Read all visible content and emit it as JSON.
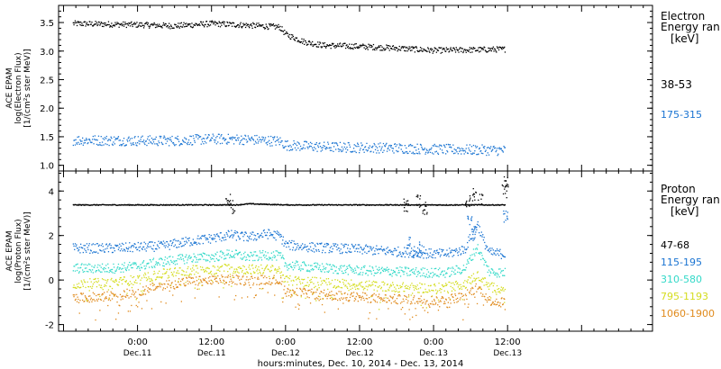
{
  "chart_data": [
    {
      "type": "scatter",
      "panel": "electron",
      "ylabel_lines": [
        "ACE EPAM",
        "log(Electron Flux)",
        "[1/(cm²s ster MeV)]"
      ],
      "ylim": [
        0.9,
        3.8
      ],
      "yticks": [
        1.0,
        1.5,
        2.0,
        2.5,
        3.0,
        3.5
      ],
      "ytick_labels": [
        "1.0",
        "1.5",
        "2.0",
        "2.5",
        "3.0",
        "3.5"
      ],
      "legend_title": [
        "Electron",
        "Energy ran",
        "[keV]"
      ],
      "legend_placement": "right",
      "series": [
        {
          "name": "38-53",
          "color": "#000000",
          "points": [
            [
              -10,
              3.49
            ],
            [
              0,
              3.47
            ],
            [
              6,
              3.45
            ],
            [
              12,
              3.49
            ],
            [
              18,
              3.46
            ],
            [
              23,
              3.43
            ],
            [
              24,
              3.3
            ],
            [
              27,
              3.17
            ],
            [
              30,
              3.11
            ],
            [
              36,
              3.09
            ],
            [
              42,
              3.06
            ],
            [
              48,
              3.02
            ],
            [
              54,
              3.03
            ],
            [
              59,
              3.04
            ]
          ]
        },
        {
          "name": "175-315",
          "color": "#1a74d2",
          "points": [
            [
              -10,
              1.45
            ],
            [
              0,
              1.44
            ],
            [
              6,
              1.44
            ],
            [
              12,
              1.47
            ],
            [
              18,
              1.46
            ],
            [
              23,
              1.43
            ],
            [
              24,
              1.36
            ],
            [
              30,
              1.33
            ],
            [
              36,
              1.32
            ],
            [
              42,
              1.31
            ],
            [
              48,
              1.29
            ],
            [
              54,
              1.28
            ],
            [
              59,
              1.27
            ]
          ]
        }
      ]
    },
    {
      "type": "scatter",
      "panel": "proton",
      "ylabel_lines": [
        "ACE EPAM",
        "log(Proton Flux)",
        "[1/(cm²s ster MeV)]"
      ],
      "ylim": [
        -2.3,
        4.9
      ],
      "yticks": [
        -2,
        0,
        2,
        4
      ],
      "ytick_labels": [
        "-2",
        "0",
        "2",
        "4"
      ],
      "legend_title": [
        "Proton",
        "Energy ran",
        "[keV]"
      ],
      "legend_placement": "right",
      "series": [
        {
          "name": "47-68",
          "color": "#000000",
          "points": [
            [
              -10,
              3.4
            ],
            [
              0,
              3.4
            ],
            [
              12,
              3.4
            ],
            [
              16,
              3.4
            ],
            [
              18,
              3.45
            ],
            [
              24,
              3.4
            ],
            [
              36,
              3.4
            ],
            [
              44,
              3.4
            ],
            [
              50,
              3.4
            ],
            [
              56,
              3.4
            ],
            [
              59,
              3.4
            ]
          ],
          "bursts": [
            [
              14.6,
              4.0
            ],
            [
              15.3,
              3.6
            ],
            [
              43.5,
              3.7
            ],
            [
              45.5,
              3.9
            ],
            [
              46.5,
              3.55
            ],
            [
              53.5,
              3.9
            ],
            [
              54.5,
              4.15
            ],
            [
              55.5,
              3.9
            ],
            [
              59.4,
              4.3
            ],
            [
              59.7,
              4.7
            ]
          ]
        },
        {
          "name": "115-195",
          "color": "#1a74d2",
          "points": [
            [
              -10,
              1.45
            ],
            [
              -4,
              1.45
            ],
            [
              0,
              1.5
            ],
            [
              4,
              1.55
            ],
            [
              8,
              1.75
            ],
            [
              12,
              1.9
            ],
            [
              15,
              2.05
            ],
            [
              18,
              1.95
            ],
            [
              21,
              2.1
            ],
            [
              23,
              2.0
            ],
            [
              24,
              1.6
            ],
            [
              28,
              1.5
            ],
            [
              36,
              1.4
            ],
            [
              42,
              1.3
            ],
            [
              48,
              1.2
            ],
            [
              50,
              1.2
            ],
            [
              53,
              1.4
            ],
            [
              55,
              2.6
            ],
            [
              56,
              1.8
            ],
            [
              57,
              1.25
            ],
            [
              59,
              1.2
            ]
          ],
          "bursts": [
            [
              44,
              2.0
            ],
            [
              45,
              1.6
            ],
            [
              46,
              1.8
            ],
            [
              53.8,
              2.9
            ],
            [
              54.5,
              2.4
            ],
            [
              59.6,
              3.2
            ]
          ]
        },
        {
          "name": "310-580",
          "color": "#33d9c8",
          "points": [
            [
              -10,
              0.55
            ],
            [
              -4,
              0.55
            ],
            [
              0,
              0.65
            ],
            [
              4,
              0.85
            ],
            [
              8,
              1.0
            ],
            [
              12,
              1.05
            ],
            [
              15,
              1.2
            ],
            [
              18,
              1.05
            ],
            [
              21,
              1.15
            ],
            [
              23,
              1.1
            ],
            [
              24,
              0.7
            ],
            [
              28,
              0.6
            ],
            [
              36,
              0.45
            ],
            [
              42,
              0.4
            ],
            [
              48,
              0.35
            ],
            [
              50,
              0.35
            ],
            [
              53,
              0.55
            ],
            [
              55,
              1.5
            ],
            [
              56,
              0.9
            ],
            [
              57,
              0.4
            ],
            [
              59,
              0.35
            ]
          ]
        },
        {
          "name": "795-1193",
          "color": "#d4dc1e",
          "points": [
            [
              -10,
              -0.15
            ],
            [
              -4,
              -0.1
            ],
            [
              0,
              0.05
            ],
            [
              4,
              0.3
            ],
            [
              8,
              0.45
            ],
            [
              12,
              0.5
            ],
            [
              15,
              0.55
            ],
            [
              18,
              0.5
            ],
            [
              21,
              0.5
            ],
            [
              23,
              0.45
            ],
            [
              24,
              0.0
            ],
            [
              28,
              -0.05
            ],
            [
              36,
              -0.2
            ],
            [
              42,
              -0.3
            ],
            [
              48,
              -0.35
            ],
            [
              50,
              -0.3
            ],
            [
              53,
              -0.15
            ],
            [
              55,
              0.25
            ],
            [
              56,
              0.0
            ],
            [
              57,
              -0.3
            ],
            [
              59,
              -0.35
            ]
          ]
        },
        {
          "name": "1060-1900",
          "color": "#e08a1c",
          "points": [
            [
              -10,
              -0.8
            ],
            [
              -4,
              -0.7
            ],
            [
              0,
              -0.5
            ],
            [
              4,
              -0.2
            ],
            [
              8,
              -0.05
            ],
            [
              12,
              0.0
            ],
            [
              15,
              0.05
            ],
            [
              18,
              0.0
            ],
            [
              21,
              0.05
            ],
            [
              23,
              0.0
            ],
            [
              24,
              -0.5
            ],
            [
              28,
              -0.6
            ],
            [
              36,
              -0.75
            ],
            [
              42,
              -0.85
            ],
            [
              48,
              -0.9
            ],
            [
              50,
              -0.85
            ],
            [
              53,
              -0.7
            ],
            [
              55,
              -0.3
            ],
            [
              56,
              -0.55
            ],
            [
              57,
              -0.9
            ],
            [
              59,
              -0.95
            ]
          ]
        }
      ]
    }
  ],
  "x_axis": {
    "xlim": [
      -12.8,
      83.5
    ],
    "ticks": [
      {
        "x": 0,
        "line1": "0:00",
        "line2": "Dec.11"
      },
      {
        "x": 12,
        "line1": "12:00",
        "line2": "Dec.11"
      },
      {
        "x": 24,
        "line1": "0:00",
        "line2": "Dec.12"
      },
      {
        "x": 36,
        "line1": "12:00",
        "line2": "Dec.12"
      },
      {
        "x": 48,
        "line1": "0:00",
        "line2": "Dec.13"
      },
      {
        "x": 60,
        "line1": "12:00",
        "line2": "Dec.13"
      }
    ],
    "minor_tick_step_hours": 2,
    "xlabel": "hours:minutes, Dec. 10, 2014 - Dec. 13, 2014"
  },
  "colors": {
    "axes": "#000000",
    "text": "#000000",
    "background": "#ffffff"
  }
}
